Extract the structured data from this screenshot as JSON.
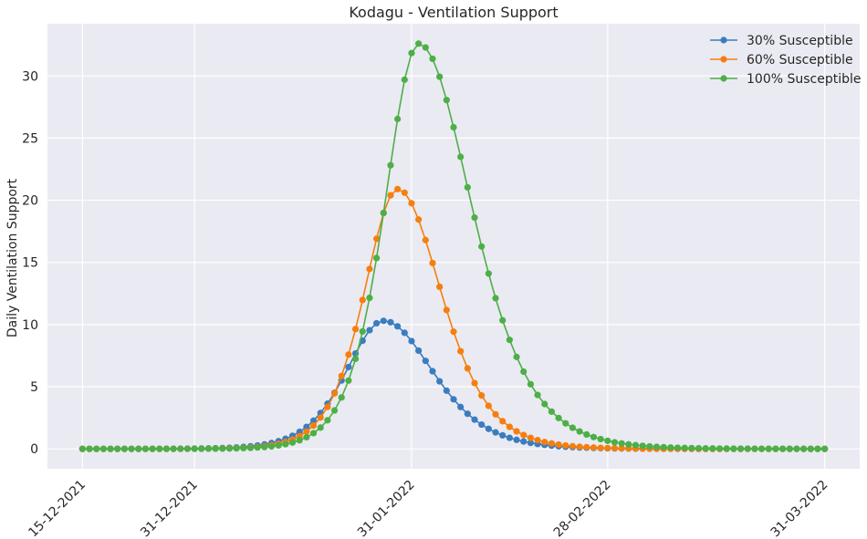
{
  "chart_data": {
    "type": "line",
    "title": "Kodagu - Ventilation Support",
    "xlabel": "",
    "ylabel": "Daily Ventilation Support",
    "x_start": "2021-12-15",
    "x_end": "2022-03-31",
    "xlim": [
      "2021-12-10",
      "2022-04-05"
    ],
    "ylim": [
      -1.6,
      34.2
    ],
    "xticks": [
      {
        "date": "2021-12-15",
        "label": "15-12-2021"
      },
      {
        "date": "2021-12-31",
        "label": "31-12-2021"
      },
      {
        "date": "2022-01-31",
        "label": "31-01-2022"
      },
      {
        "date": "2022-02-28",
        "label": "28-02-2022"
      },
      {
        "date": "2022-03-31",
        "label": "31-03-2022"
      }
    ],
    "yticks": [
      0,
      5,
      10,
      15,
      20,
      25,
      30
    ],
    "grid": true,
    "legend_position": "top-right",
    "background": "#eaeaf2",
    "series": [
      {
        "name": "30% Susceptible",
        "color": "#3a7dbf",
        "peak_date": "2022-01-27",
        "peak_value": 10.3,
        "rise_width_days": 7.2,
        "fall_width_days": 9.5
      },
      {
        "name": "60% Susceptible",
        "color": "#f57f0e",
        "peak_date": "2022-01-29",
        "peak_value": 20.9,
        "rise_width_days": 6.4,
        "fall_width_days": 8.4
      },
      {
        "name": "100% Susceptible",
        "color": "#4caf47",
        "peak_date": "2022-02-01",
        "peak_value": 32.6,
        "rise_width_days": 6.5,
        "fall_width_days": 10.2
      }
    ]
  }
}
